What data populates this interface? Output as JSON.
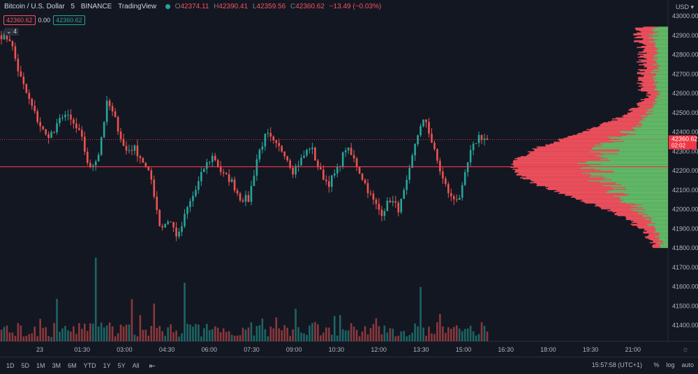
{
  "legend": {
    "symbol": "Bitcoin / U.S. Dollar",
    "interval": "5",
    "exchange": "BINANCE",
    "source": "TradingView",
    "o_label": "O",
    "o": "42374.11",
    "h_label": "H",
    "h": "42390.41",
    "l_label": "L",
    "l": "42359.56",
    "c_label": "C",
    "c": "42360.62",
    "change": "−13.49 (−0.03%)"
  },
  "sub": {
    "left": "42360.62",
    "mid": "0.00",
    "right": "42360.62"
  },
  "collapse_label": "4",
  "currency": "USD",
  "price_axis": {
    "ticks": [
      "43000.00",
      "42900.00",
      "42800.00",
      "42700.00",
      "42600.00",
      "42500.00",
      "42400.00",
      "42300.00",
      "42200.00",
      "42100.00",
      "42000.00",
      "41900.00",
      "41800.00",
      "41700.00",
      "41600.00",
      "41500.00",
      "41400.00"
    ],
    "last_price": "42360.62",
    "countdown": "02:02"
  },
  "time_axis": [
    "23",
    "01:30",
    "03:00",
    "04:30",
    "06:00",
    "07:30",
    "09:00",
    "10:30",
    "12:00",
    "13:30",
    "15:00",
    "16:30",
    "18:00",
    "19:30",
    "21:00"
  ],
  "ranges": [
    "1D",
    "5D",
    "1M",
    "3M",
    "6M",
    "YTD",
    "1Y",
    "5Y",
    "All"
  ],
  "clock": "15:57:58 (UTC+1)",
  "scale_options": {
    "percent": "%",
    "log": "log",
    "auto": "auto"
  },
  "colors": {
    "up": "#26a69a",
    "down": "#ef5350",
    "bg": "#131722",
    "poc": "#f23645",
    "vp_up": "#65c16a",
    "vp_down": "#f7525f"
  },
  "chart_data": {
    "type": "candlestick",
    "series": [
      {
        "name": "BTCUSD",
        "close_path": [
          42900,
          42880,
          42700,
          42580,
          42470,
          42380,
          42400,
          42500,
          42450,
          42380,
          42200,
          42290,
          42560,
          42450,
          42300,
          42320,
          42250,
          42150,
          41900,
          41950,
          41850,
          42000,
          42100,
          42220,
          42280,
          42180,
          42150,
          42060,
          42050,
          42280,
          42390,
          42330,
          42300,
          42200,
          42260,
          42330,
          42200,
          42130,
          42200,
          42320,
          42250,
          42150,
          42050,
          41980,
          42050,
          42000,
          42150,
          42380,
          42470,
          42300,
          42150,
          42050,
          42070,
          42280,
          42380,
          42360
        ]
      }
    ],
    "volume_profile": {
      "poc": 42220,
      "range": [
        41800,
        42940
      ]
    }
  }
}
